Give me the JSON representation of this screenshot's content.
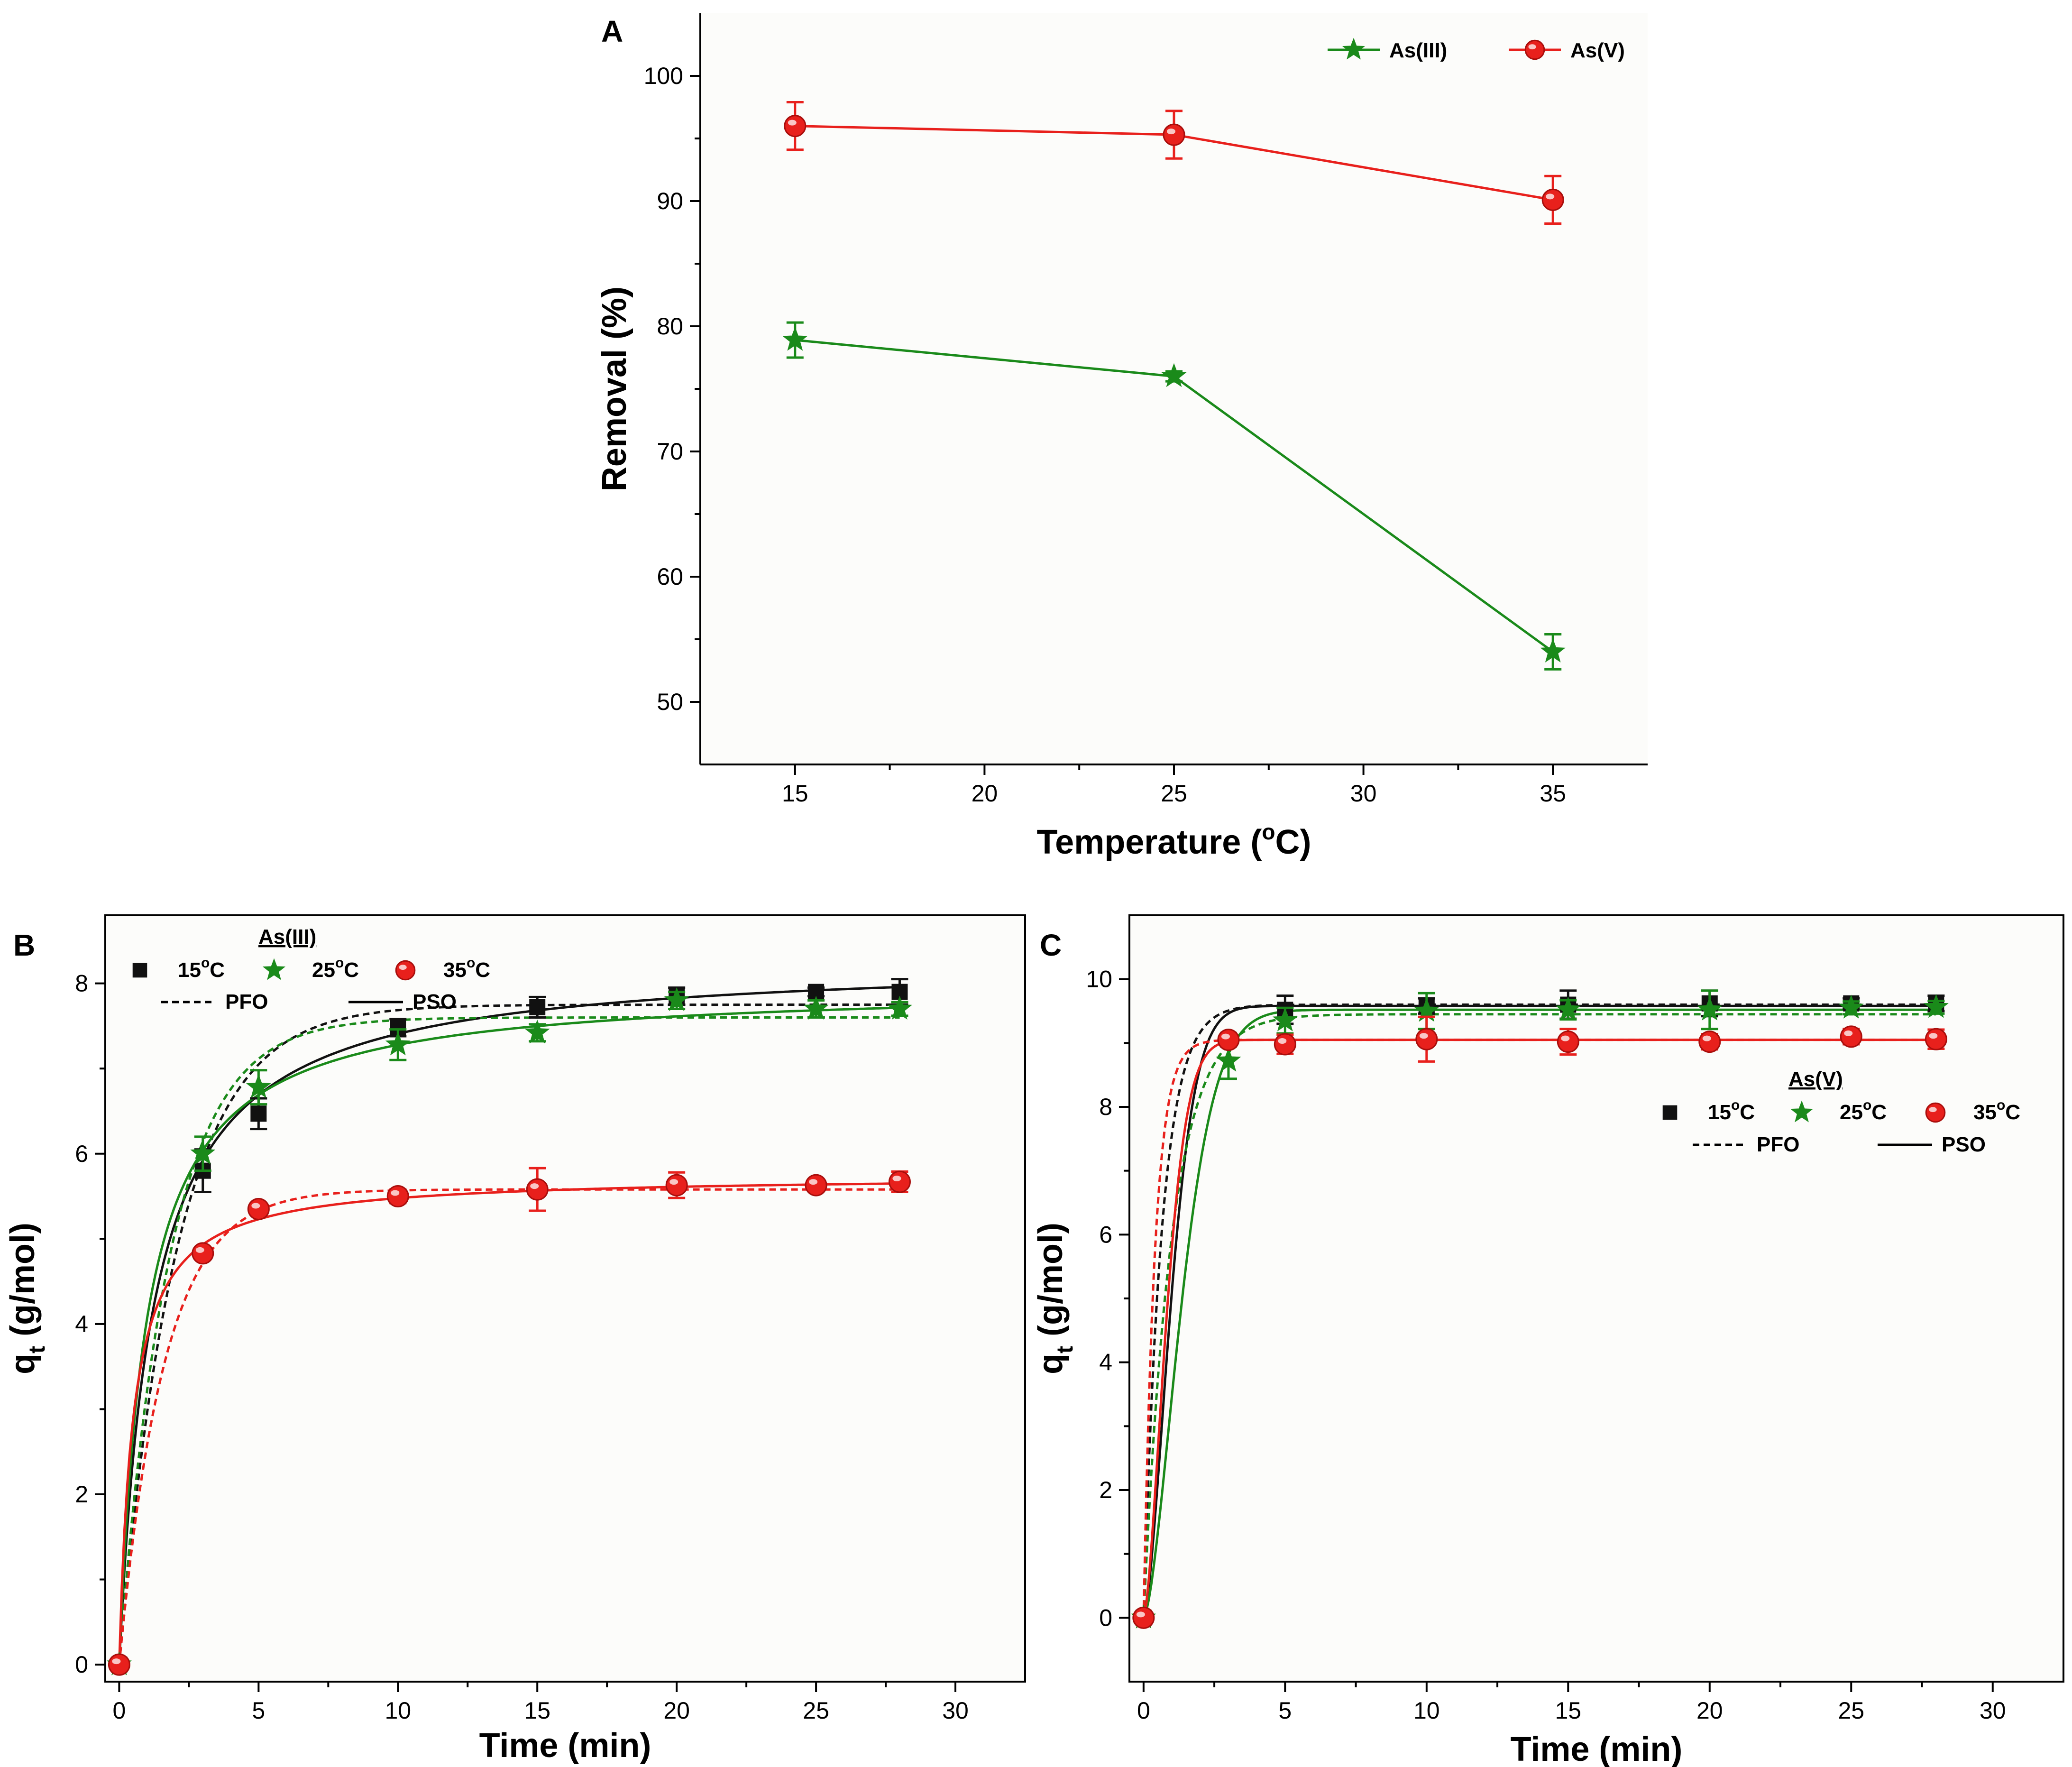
{
  "figure": {
    "colors": {
      "black": "#111111",
      "green": "#1a8a1a",
      "red": "#e8201c",
      "panel_bg": "#fcfcfa"
    }
  },
  "chart_data": [
    {
      "id": "A",
      "type": "line",
      "panel_label": "A",
      "xlabel": "Temperature (",
      "xlabel_sup": "o",
      "xlabel_tail": "C)",
      "ylabel": "Removal (%)",
      "xlim": [
        12.5,
        37.5
      ],
      "ylim": [
        45,
        105
      ],
      "xticks": [
        15,
        20,
        25,
        30,
        35
      ],
      "yticks": [
        50,
        60,
        70,
        80,
        90,
        100
      ],
      "legend": {
        "position": "top-right",
        "entries": [
          {
            "label": "As(III)",
            "marker": "star",
            "color": "#1a8a1a"
          },
          {
            "label": "As(V)",
            "marker": "circle",
            "color": "#e8201c"
          }
        ]
      },
      "series": [
        {
          "name": "As(III)",
          "color": "#1a8a1a",
          "marker": "star",
          "x": [
            15,
            25,
            35
          ],
          "y": [
            78.9,
            76.0,
            54.0
          ],
          "err": [
            1.4,
            0.4,
            1.4
          ]
        },
        {
          "name": "As(V)",
          "color": "#e8201c",
          "marker": "circle",
          "x": [
            15,
            25,
            35
          ],
          "y": [
            96.0,
            95.3,
            90.1
          ],
          "err": [
            1.9,
            1.9,
            1.9
          ]
        }
      ]
    },
    {
      "id": "B",
      "type": "scatter",
      "panel_label": "B",
      "xlabel": "Time (min)",
      "ylabel": "q",
      "ylabel_sub": "t",
      "ylabel_tail": " (g/mol)",
      "xlim": [
        -0.5,
        32.5
      ],
      "ylim": [
        -0.2,
        8.8
      ],
      "xticks": [
        0,
        5,
        10,
        15,
        20,
        25,
        30
      ],
      "yticks": [
        0,
        2,
        4,
        6,
        8
      ],
      "legend": {
        "title": "As(III)",
        "position": "top-left",
        "entries": [
          {
            "label": "15",
            "sup": "o",
            "tail": "C",
            "marker": "square",
            "color": "#111111"
          },
          {
            "label": "25",
            "sup": "o",
            "tail": "C",
            "marker": "star",
            "color": "#1a8a1a"
          },
          {
            "label": "35",
            "sup": "o",
            "tail": "C",
            "marker": "circle",
            "color": "#e8201c"
          }
        ],
        "line_entries": [
          {
            "label": "PFO",
            "style": "dashed"
          },
          {
            "label": "PSO",
            "style": "solid"
          }
        ]
      },
      "series": [
        {
          "name": "15oC",
          "color": "#111111",
          "marker": "square",
          "x": [
            0,
            3,
            5,
            10,
            15,
            20,
            25,
            28
          ],
          "y": [
            0,
            5.8,
            6.47,
            7.48,
            7.72,
            7.85,
            7.9,
            7.9
          ],
          "err": [
            0,
            0.25,
            0.18,
            0.1,
            0.12,
            0.1,
            0.05,
            0.15
          ],
          "pfo": {
            "qe": 7.75,
            "k1": 0.48
          },
          "pso": {
            "qe": 8.3,
            "k2": 0.1
          }
        },
        {
          "name": "25oC",
          "color": "#1a8a1a",
          "marker": "star",
          "x": [
            0,
            3,
            5,
            10,
            15,
            20,
            25,
            28
          ],
          "y": [
            0,
            6.0,
            6.78,
            7.28,
            7.42,
            7.8,
            7.7,
            7.7
          ],
          "err": [
            0,
            0.2,
            0.2,
            0.18,
            0.1,
            0.1,
            0.1,
            0.08
          ],
          "pfo": {
            "qe": 7.6,
            "k1": 0.55
          },
          "pso": {
            "qe": 7.98,
            "k2": 0.13
          }
        },
        {
          "name": "35oC",
          "color": "#e8201c",
          "marker": "circle",
          "x": [
            0,
            3,
            5,
            10,
            15,
            20,
            25,
            28
          ],
          "y": [
            0,
            4.83,
            5.35,
            5.5,
            5.58,
            5.63,
            5.63,
            5.67
          ],
          "err": [
            0,
            0.05,
            0.05,
            0.08,
            0.25,
            0.15,
            0.05,
            0.12
          ],
          "pfo": {
            "qe": 5.58,
            "k1": 0.62
          },
          "pso": {
            "qe": 5.75,
            "k2": 0.35
          }
        }
      ]
    },
    {
      "id": "C",
      "type": "scatter",
      "panel_label": "C",
      "xlabel": "Time (min)",
      "ylabel": "q",
      "ylabel_sub": "t",
      "ylabel_tail": " (g/mol)",
      "xlim": [
        -0.5,
        32.5
      ],
      "ylim": [
        -1,
        11
      ],
      "xticks": [
        0,
        5,
        10,
        15,
        20,
        25,
        30
      ],
      "yticks": [
        0,
        2,
        4,
        6,
        8,
        10
      ],
      "legend": {
        "title": "As(V)",
        "position": "right",
        "entries": [
          {
            "label": "15",
            "sup": "o",
            "tail": "C",
            "marker": "square",
            "color": "#111111"
          },
          {
            "label": "25",
            "sup": "o",
            "tail": "C",
            "marker": "star",
            "color": "#1a8a1a"
          },
          {
            "label": "35",
            "sup": "o",
            "tail": "C",
            "marker": "circle",
            "color": "#e8201c"
          }
        ],
        "line_entries": [
          {
            "label": "PFO",
            "style": "dashed"
          },
          {
            "label": "PSO",
            "style": "solid"
          }
        ]
      },
      "series": [
        {
          "name": "15oC",
          "color": "#111111",
          "marker": "square",
          "x": [
            0,
            3,
            5,
            10,
            15,
            20,
            25,
            28
          ],
          "y": [
            0,
            9.05,
            9.52,
            9.58,
            9.6,
            9.62,
            9.62,
            9.62
          ],
          "err": [
            0,
            0.1,
            0.22,
            0.12,
            0.22,
            0.2,
            0.08,
            0.12
          ],
          "pfo": {
            "qe": 9.6,
            "k1": 1.55
          },
          "pso": {
            "qe": 9.58,
            "k2": 0.055,
            "sat": true
          }
        },
        {
          "name": "25oC",
          "color": "#1a8a1a",
          "marker": "star",
          "x": [
            0,
            3,
            5,
            10,
            15,
            20,
            25,
            28
          ],
          "y": [
            0,
            8.72,
            9.35,
            9.5,
            9.52,
            9.52,
            9.55,
            9.56
          ],
          "err": [
            0,
            0.28,
            0.2,
            0.28,
            0.15,
            0.3,
            0.1,
            0.1
          ],
          "pfo": {
            "qe": 9.45,
            "k1": 1.0
          },
          "pso": {
            "qe": 9.52,
            "k2": 0.04,
            "sat": true
          }
        },
        {
          "name": "35oC",
          "color": "#e8201c",
          "marker": "circle",
          "x": [
            0,
            3,
            5,
            10,
            15,
            20,
            25,
            28
          ],
          "y": [
            0,
            9.05,
            8.98,
            9.06,
            9.02,
            9.02,
            9.1,
            9.06
          ],
          "err": [
            0,
            0.1,
            0.15,
            0.35,
            0.2,
            0.12,
            0.12,
            0.15
          ],
          "pfo": {
            "qe": 9.05,
            "k1": 2.5
          },
          "pso": {
            "qe": 9.05,
            "k2": 0.07,
            "sat": true
          }
        }
      ]
    }
  ]
}
